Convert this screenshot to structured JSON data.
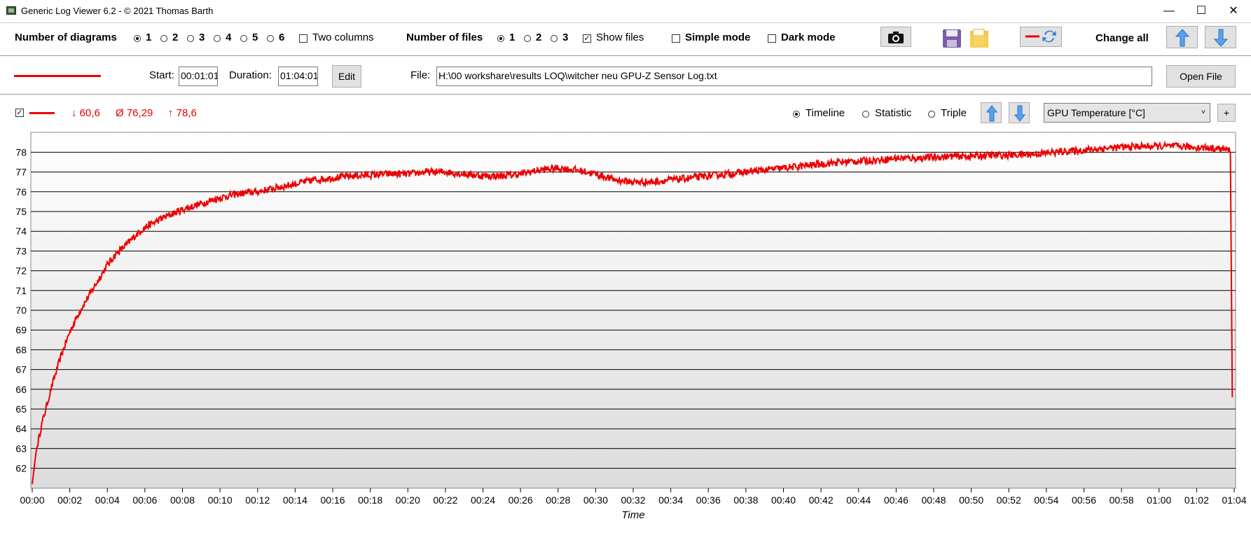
{
  "window": {
    "title": "Generic Log Viewer 6.2 - © 2021 Thomas Barth",
    "minimize": "—",
    "maximize": "☐",
    "close": "✕"
  },
  "toolbar": {
    "diagrams_label": "Number of diagrams",
    "diagram_options": [
      "1",
      "2",
      "3",
      "4",
      "5",
      "6"
    ],
    "diagram_selected": "1",
    "two_columns": "Two columns",
    "files_label": "Number of files",
    "file_options": [
      "1",
      "2",
      "3"
    ],
    "file_selected": "1",
    "show_files": "Show files",
    "simple_mode": "Simple mode",
    "dark_mode": "Dark mode",
    "change_all": "Change all",
    "icons": [
      "camera-icon",
      "save-icon",
      "folder-icon",
      "color-swap-icon",
      "arrow-up-icon",
      "arrow-down-icon"
    ]
  },
  "filebar": {
    "line_color": "#ee0000",
    "start_label": "Start:",
    "start_value": "00:01:01",
    "duration_label": "Duration:",
    "duration_value": "01:04:01",
    "edit_label": "Edit",
    "file_label": "File:",
    "file_path": "H:\\00 workshare\\results LOQ\\witcher neu GPU-Z Sensor Log.txt",
    "open_file_label": "Open File"
  },
  "diagram": {
    "min": "↓ 60,6",
    "avg": "Ø 76,29",
    "max": "↑ 78,6",
    "modes": [
      "Timeline",
      "Statistic",
      "Triple"
    ],
    "mode_selected": "Timeline",
    "sensor": "GPU Temperature [°C]",
    "add_label": "+"
  },
  "chart_data": {
    "type": "line",
    "xlabel": "Time",
    "ylabel": "",
    "title": "",
    "x_ticks": [
      "00:00",
      "00:02",
      "00:04",
      "00:06",
      "00:08",
      "00:10",
      "00:12",
      "00:14",
      "00:16",
      "00:18",
      "00:20",
      "00:22",
      "00:24",
      "00:26",
      "00:28",
      "00:30",
      "00:32",
      "00:34",
      "00:36",
      "00:38",
      "00:40",
      "00:42",
      "00:44",
      "00:46",
      "00:48",
      "00:50",
      "00:52",
      "00:54",
      "00:56",
      "00:58",
      "01:00",
      "01:02",
      "01:04"
    ],
    "y_ticks": [
      62,
      63,
      64,
      65,
      66,
      67,
      68,
      69,
      70,
      71,
      72,
      73,
      74,
      75,
      76,
      77,
      78
    ],
    "ylim": [
      61.1,
      78.9
    ],
    "xlim_minutes": [
      0,
      64
    ],
    "series": [
      {
        "color": "#ee0000",
        "x_minutes": [
          0,
          0.2,
          0.5,
          1,
          1.5,
          2,
          2.5,
          3,
          3.5,
          4,
          4.5,
          5,
          5.5,
          6,
          7,
          8,
          9,
          10,
          11,
          12,
          13,
          14,
          15,
          16,
          17,
          18,
          19,
          20,
          21,
          22,
          23,
          24,
          25,
          26,
          27,
          28,
          29,
          30,
          31,
          32,
          33,
          34,
          35,
          36,
          37,
          38,
          39,
          40,
          41,
          42,
          43,
          44,
          45,
          46,
          47,
          48,
          49,
          50,
          51,
          52,
          53,
          54,
          55,
          56,
          57,
          58,
          59,
          60,
          61,
          62,
          63,
          63.8,
          63.9
        ],
        "values": [
          61.2,
          62.8,
          64.2,
          66.0,
          67.6,
          68.9,
          69.9,
          70.7,
          71.5,
          72.3,
          72.9,
          73.3,
          73.8,
          74.2,
          74.7,
          75.1,
          75.4,
          75.7,
          75.9,
          76.0,
          76.2,
          76.4,
          76.6,
          76.7,
          76.8,
          76.85,
          76.9,
          76.9,
          77.0,
          77.0,
          76.9,
          76.8,
          76.8,
          76.9,
          77.1,
          77.2,
          77.1,
          76.9,
          76.6,
          76.5,
          76.5,
          76.6,
          76.7,
          76.8,
          76.9,
          77.0,
          77.1,
          77.2,
          77.3,
          77.4,
          77.5,
          77.55,
          77.6,
          77.7,
          77.7,
          77.75,
          77.8,
          77.8,
          77.85,
          77.85,
          77.9,
          77.95,
          78.05,
          78.1,
          78.2,
          78.25,
          78.3,
          78.3,
          78.3,
          78.25,
          78.2,
          78.1,
          65.6
        ],
        "noise": 0.18
      }
    ]
  }
}
